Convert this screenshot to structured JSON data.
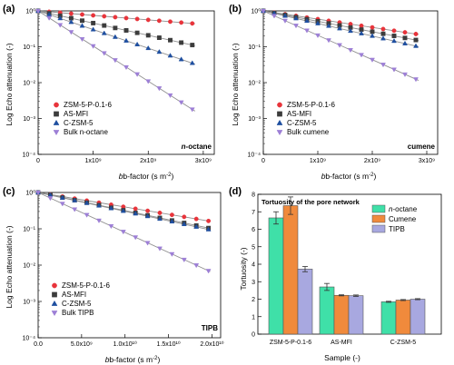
{
  "panels": [
    {
      "id": "a",
      "label": "(a)",
      "ylabel": "Log Echo attenuation (-)",
      "xlabel": "b-factor (s m",
      "xlabel_sup": "-2",
      "xlabel_end": ")",
      "corner": "n-octane",
      "corner_italic": "n",
      "corner_rest": "-octane",
      "legend": [
        "ZSM-5-P-0.1-6",
        "AS-MFI",
        "C-ZSM-5",
        "Bulk n-octane"
      ]
    },
    {
      "id": "b",
      "label": "(b)",
      "ylabel": "Log Echo attenuation (-)",
      "xlabel": "b-factor (s m",
      "xlabel_sup": "-2",
      "xlabel_end": ")",
      "corner": "cumene",
      "legend": [
        "ZSM-5-P-0.1-6",
        "AS-MFI",
        "C-ZSM-5",
        "Bulk cumene"
      ]
    },
    {
      "id": "c",
      "label": "(c)",
      "ylabel": "Log Echo attenuation (-)",
      "xlabel": "b-factor (s m",
      "xlabel_sup": "-2",
      "xlabel_end": ")",
      "corner": "TIPB",
      "legend": [
        "ZSM-5-P-0.1-6",
        "AS-MFI",
        "C-ZSM-5",
        "Bulk TIPB"
      ]
    },
    {
      "id": "d",
      "label": "(d)",
      "title": "Tortuosity of the pore network",
      "ylabel": "Tortuosity (-)",
      "xlabel": "Sample (-)",
      "legend": [
        "n-octane",
        "Cumene",
        "TIPB"
      ]
    }
  ],
  "colors": {
    "red": "#e8343b",
    "dark": "#3c3c3c",
    "blue": "#1f4fa0",
    "purple": "#9d7fd6",
    "fit": "#8f8f8f",
    "teal": "#3fe0a8",
    "orange": "#f08a3c",
    "lavender": "#a8a8e0"
  },
  "chart_data": [
    {
      "type": "scatter",
      "panel": "a",
      "yscale": "log",
      "ylim": [
        0.0001,
        1
      ],
      "xlim": [
        0,
        3200000000
      ],
      "xticks": [
        0,
        1000000000,
        2000000000,
        3000000000
      ],
      "xtick_labels": [
        "0",
        "1x10⁹",
        "2x10⁹",
        "3x10⁹"
      ],
      "ytick_labels": [
        "10⁰",
        "10⁻¹",
        "10⁻²",
        "10⁻³",
        "10⁻⁴"
      ],
      "x": [
        0,
        200000000,
        400000000,
        600000000,
        800000000,
        1000000000,
        1200000000,
        1400000000,
        1600000000,
        1800000000,
        2000000000,
        2200000000,
        2400000000,
        2600000000,
        2800000000
      ],
      "series": [
        {
          "name": "ZSM-5-P-0.1-6",
          "slope_per_1e9": 0.125,
          "marker": "circle",
          "color": "red",
          "fit_x_max": 2850000000
        },
        {
          "name": "AS-MFI",
          "slope_per_1e9": 0.34,
          "marker": "square",
          "color": "dark",
          "fit_x_max": 2850000000
        },
        {
          "name": "C-ZSM-5",
          "slope_per_1e9": 0.52,
          "marker": "triangle-up",
          "color": "blue",
          "fit_x_max": 2850000000
        },
        {
          "name": "Bulk n-octane",
          "slope_per_1e9": 0.98,
          "marker": "triangle-down",
          "color": "purple",
          "fit_x_max": 2850000000
        }
      ]
    },
    {
      "type": "scatter",
      "panel": "b",
      "yscale": "log",
      "ylim": [
        0.0001,
        1
      ],
      "xlim": [
        0,
        3200000000
      ],
      "xticks": [
        0,
        1000000000,
        2000000000,
        3000000000
      ],
      "xtick_labels": [
        "0",
        "1x10⁹",
        "2x10⁹",
        "3x10⁹"
      ],
      "ytick_labels": [
        "10⁰",
        "10⁻¹",
        "10⁻²",
        "10⁻³",
        "10⁻⁴"
      ],
      "x": [
        0,
        200000000,
        400000000,
        600000000,
        800000000,
        1000000000,
        1200000000,
        1400000000,
        1600000000,
        1800000000,
        2000000000,
        2200000000,
        2400000000,
        2600000000,
        2800000000
      ],
      "series": [
        {
          "name": "ZSM-5-P-0.1-6",
          "slope_per_1e9": 0.23,
          "marker": "circle",
          "color": "red",
          "fit_x_max": 2850000000
        },
        {
          "name": "AS-MFI",
          "slope_per_1e9": 0.29,
          "marker": "square",
          "color": "dark",
          "fit_x_max": 2850000000
        },
        {
          "name": "C-ZSM-5",
          "slope_per_1e9": 0.35,
          "marker": "triangle-up",
          "color": "blue",
          "fit_x_max": 2850000000
        },
        {
          "name": "Bulk cumene",
          "slope_per_1e9": 0.68,
          "marker": "triangle-down",
          "color": "purple",
          "fit_x_max": 2850000000
        }
      ]
    },
    {
      "type": "scatter",
      "panel": "c",
      "yscale": "log",
      "ylim": [
        0.0001,
        1
      ],
      "xlim": [
        0,
        21000000000
      ],
      "xticks": [
        0,
        5000000000,
        10000000000,
        15000000000,
        20000000000
      ],
      "xtick_labels": [
        "0.0",
        "5.0x10⁹",
        "1.0x10¹⁰",
        "1.5x10¹⁰",
        "2.0x10¹⁰"
      ],
      "ytick_labels": [
        "10⁰",
        "10⁻¹",
        "10⁻²",
        "10⁻³",
        "10⁻⁴"
      ],
      "x": [
        0,
        1400000000,
        2800000000,
        4200000000,
        5600000000,
        7000000000,
        8400000000,
        9800000000,
        11200000000,
        12600000000,
        14000000000,
        15400000000,
        16800000000,
        18200000000,
        19600000000
      ],
      "series": [
        {
          "name": "ZSM-5-P-0.1-6",
          "slope_per_1e9": 0.04,
          "marker": "circle",
          "color": "red",
          "fit_x_max": 19800000000
        },
        {
          "name": "AS-MFI",
          "slope_per_1e9": 0.05,
          "marker": "square",
          "color": "dark",
          "fit_x_max": 19800000000
        },
        {
          "name": "C-ZSM-5",
          "slope_per_1e9": 0.052,
          "marker": "triangle-up",
          "color": "blue",
          "fit_x_max": 19800000000
        },
        {
          "name": "Bulk TIPB",
          "slope_per_1e9": 0.11,
          "marker": "triangle-down",
          "color": "purple",
          "fit_x_max": 19800000000
        }
      ]
    },
    {
      "type": "bar",
      "panel": "d",
      "title": "Tortuosity of the pore network",
      "categories": [
        "ZSM-5-P-0.1-6",
        "AS-MFI",
        "C-ZSM-5"
      ],
      "ylim": [
        0,
        8
      ],
      "yticks": [
        0,
        1,
        2,
        3,
        4,
        5,
        6,
        7,
        8
      ],
      "ylabel": "Tortuosity (-)",
      "xlabel": "Sample (-)",
      "series": [
        {
          "name": "n-octane",
          "values": [
            6.65,
            2.7,
            1.85
          ],
          "errors": [
            0.35,
            0.2,
            0.03
          ],
          "color": "teal"
        },
        {
          "name": "Cumene",
          "values": [
            7.35,
            2.22,
            1.95
          ],
          "errors": [
            0.5,
            0.03,
            0.03
          ],
          "color": "orange"
        },
        {
          "name": "TIPB",
          "values": [
            3.72,
            2.2,
            2.0
          ],
          "errors": [
            0.15,
            0.04,
            0.03
          ],
          "color": "lavender"
        }
      ]
    }
  ]
}
